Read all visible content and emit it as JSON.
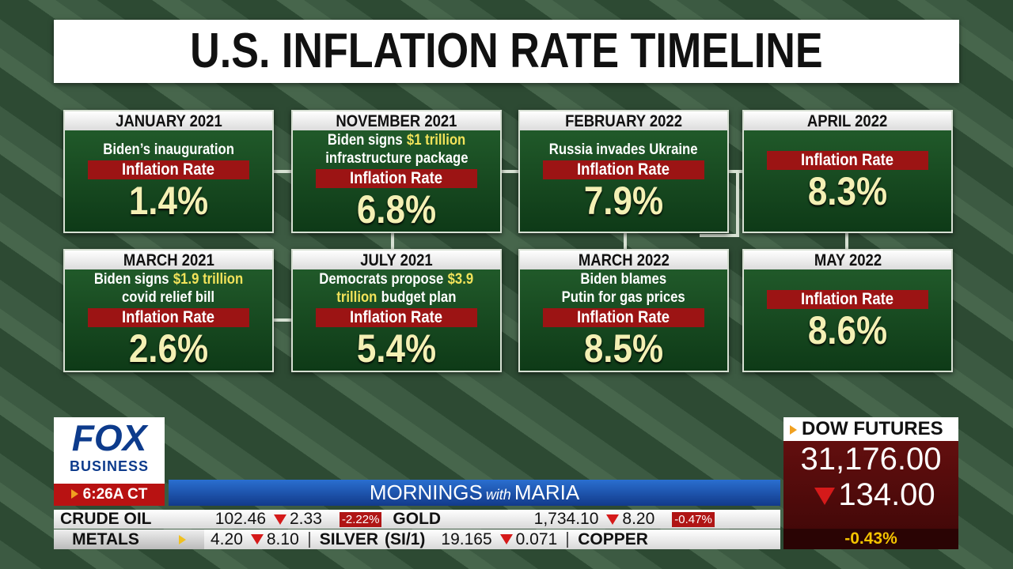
{
  "title": "U.S. INFLATION RATE TIMELINE",
  "cards": [
    {
      "date": "JANUARY 2021",
      "description": [
        [
          {
            "text": "Biden’s inauguration"
          }
        ]
      ],
      "label": "Inflation Rate",
      "value": "1.4%"
    },
    {
      "date": "NOVEMBER 2021",
      "description": [
        [
          {
            "text": "Biden signs"
          },
          {
            "text": "$1 trillion",
            "highlight": true
          }
        ],
        [
          {
            "text": "infrastructure package"
          }
        ]
      ],
      "label": "Inflation Rate",
      "value": "6.8%"
    },
    {
      "date": "FEBRUARY 2022",
      "description": [
        [
          {
            "text": "Russia invades Ukraine"
          }
        ]
      ],
      "label": "Inflation Rate",
      "value": "7.9%"
    },
    {
      "date": "APRIL 2022",
      "label": "Inflation Rate",
      "value": "8.3%"
    },
    {
      "date": "MARCH 2021",
      "description": [
        [
          {
            "text": "Biden signs"
          },
          {
            "text": "$1.9 trillion",
            "highlight": true
          }
        ],
        [
          {
            "text": "covid relief bill"
          }
        ]
      ],
      "label": "Inflation Rate",
      "value": "2.6%"
    },
    {
      "date": "JULY 2021",
      "description": [
        [
          {
            "text": "Democrats propose"
          },
          {
            "text": "$3.9",
            "highlight": true
          }
        ],
        [
          {
            "text": "trillion",
            "highlight": true
          },
          {
            "text": "budget plan"
          }
        ]
      ],
      "label": "Inflation Rate",
      "value": "5.4%"
    },
    {
      "date": "MARCH 2022",
      "description": [
        [
          {
            "text": "Biden blames"
          }
        ],
        [
          {
            "text": "Putin for gas prices"
          }
        ]
      ],
      "label": "Inflation Rate",
      "value": "8.5%"
    },
    {
      "date": "MAY 2022",
      "label": "Inflation Rate",
      "value": "8.6%"
    }
  ],
  "logo": {
    "brand": "FOX",
    "sub": "BUSINESS",
    "time": "6:26A CT"
  },
  "show": [
    "MORNINGS",
    "with",
    "MARIA"
  ],
  "ticker": {
    "row1": [
      {
        "name": "CRUDE OIL",
        "price": "102.46",
        "change": "2.33",
        "percent": "-2.22%"
      },
      {
        "name": "GOLD",
        "price": "1,734.10",
        "change": "8.20",
        "percent": "-0.47%"
      }
    ],
    "row2": {
      "label": "METALS",
      "items": [
        {
          "price": "4.20",
          "change": "8.10"
        },
        {
          "name": "SILVER",
          "symbol": "(SI/1)",
          "price": "19.165",
          "change": "0.071"
        },
        {
          "name": "COPPER"
        }
      ]
    }
  },
  "dow": {
    "title": "DOW FUTURES",
    "value": "31,176.00",
    "change": "134.00",
    "percent": "-0.43%"
  }
}
